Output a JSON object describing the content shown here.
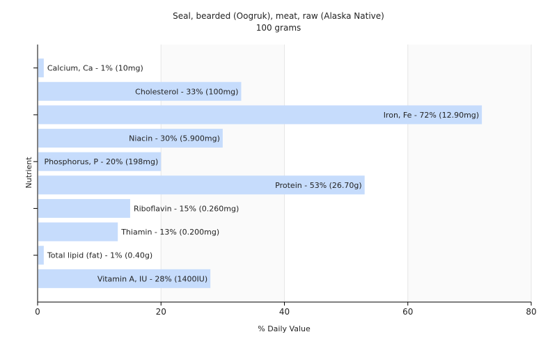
{
  "chart_data": {
    "type": "bar",
    "orientation": "horizontal",
    "title": "Seal, bearded (Oogruk), meat, raw (Alaska Native)",
    "subtitle": "100 grams",
    "xlabel": "% Daily Value",
    "ylabel": "Nutrient",
    "xlim": [
      0,
      80
    ],
    "xticks": [
      0,
      20,
      40,
      60,
      80
    ],
    "grid": "vertical",
    "bar_color": "#c6dcfc",
    "categories": [
      "Calcium, Ca",
      "Cholesterol",
      "Iron, Fe",
      "Niacin",
      "Phosphorus, P",
      "Protein",
      "Riboflavin",
      "Thiamin",
      "Total lipid (fat)",
      "Vitamin A, IU"
    ],
    "values": [
      1,
      33,
      72,
      30,
      20,
      53,
      15,
      13,
      1,
      28
    ],
    "labels": [
      "Calcium, Ca - 1% (10mg)",
      "Cholesterol - 33% (100mg)",
      "Iron, Fe - 72% (12.90mg)",
      "Niacin - 30% (5.900mg)",
      "Phosphorus, P - 20% (198mg)",
      "Protein - 53% (26.70g)",
      "Riboflavin - 15% (0.260mg)",
      "Thiamin - 13% (0.200mg)",
      "Total lipid (fat) - 1% (0.40g)",
      "Vitamin A, IU - 28% (1400IU)"
    ]
  }
}
